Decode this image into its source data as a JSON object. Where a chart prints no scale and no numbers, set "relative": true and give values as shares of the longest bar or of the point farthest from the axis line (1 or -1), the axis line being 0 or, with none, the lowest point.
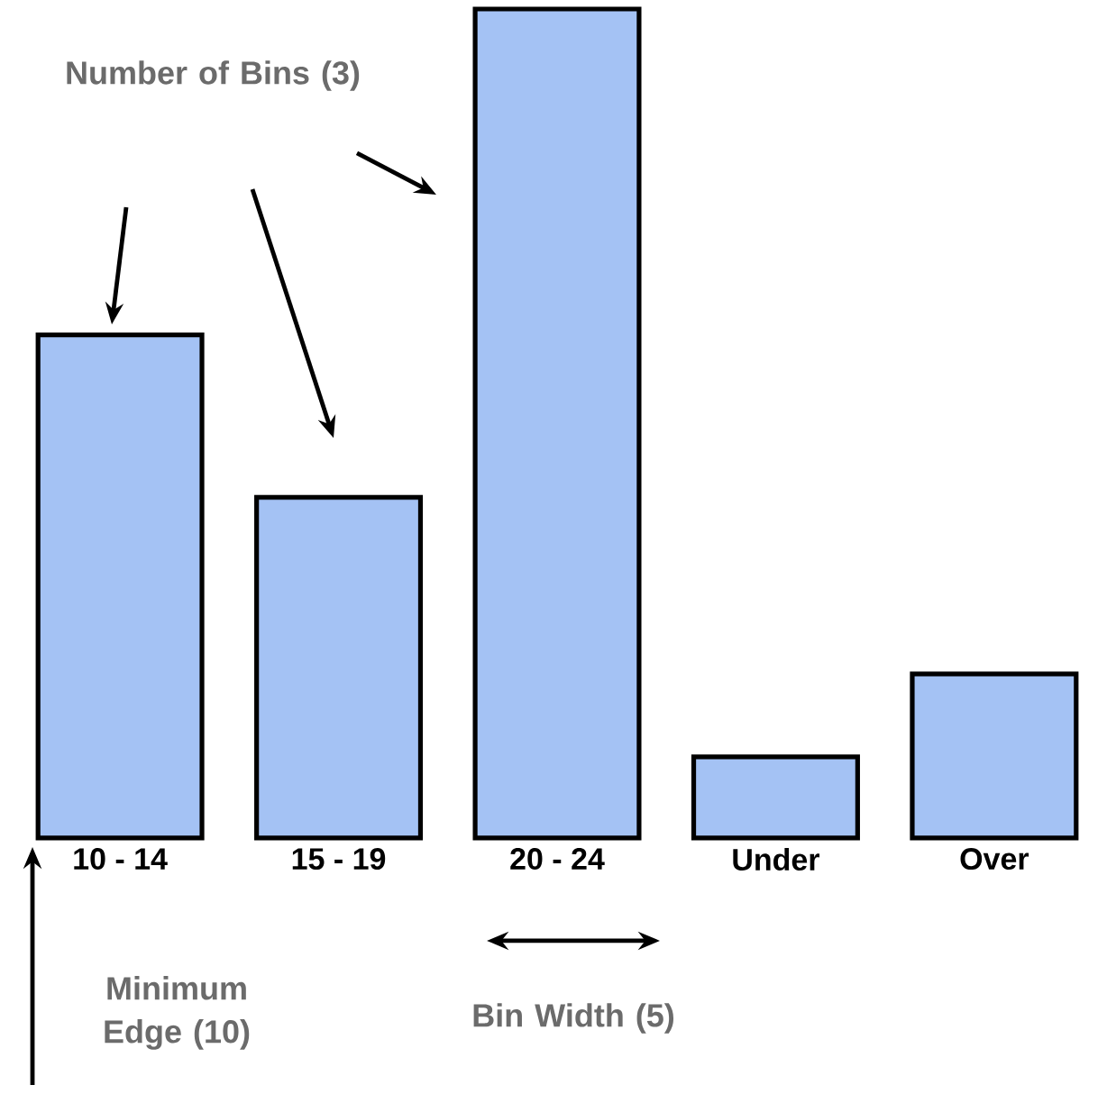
{
  "chart_data": {
    "type": "bar",
    "relative": true,
    "categories": [
      "10 - 14",
      "15 - 19",
      "20 - 24",
      "Under",
      "Over"
    ],
    "values": [
      0.607,
      0.411,
      1.0,
      0.098,
      0.198
    ],
    "color": "#a4c2f4",
    "annotations": [
      "Number of Bins (3)",
      "Minimum Edge (10)",
      "Bin Width (5)"
    ]
  }
}
